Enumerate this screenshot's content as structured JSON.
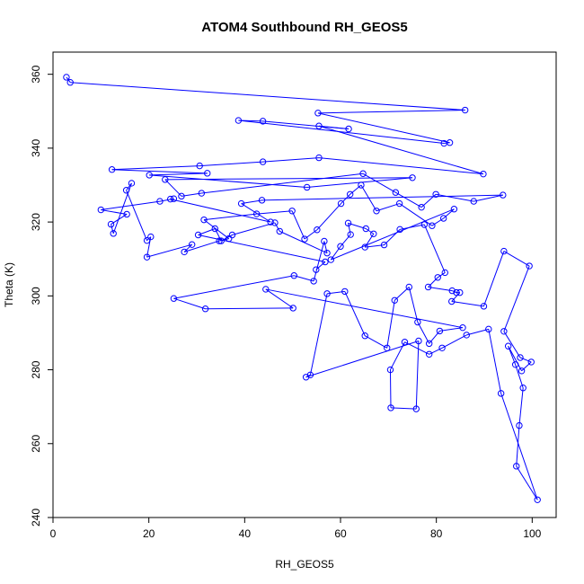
{
  "chart_data": {
    "type": "scatter",
    "mode": "points-and-lines",
    "title": "ATOM4 Southbound RH_GEOS5",
    "xlabel": "RH_GEOS5",
    "ylabel": "Theta (K)",
    "xlim": [
      0,
      105
    ],
    "ylim": [
      240,
      366
    ],
    "xticks": [
      0,
      20,
      40,
      60,
      80,
      100
    ],
    "yticks": [
      240,
      260,
      280,
      300,
      320,
      340,
      360
    ],
    "color": "#0000ff",
    "marker": "open-circle",
    "grid": false,
    "legend": "none",
    "points": [
      [
        2.8,
        359.2
      ],
      [
        3.6,
        357.8
      ],
      [
        86,
        350.3
      ],
      [
        55.3,
        349.5
      ],
      [
        82.8,
        341.5
      ],
      [
        81.6,
        341.3
      ],
      [
        38.7,
        347.5
      ],
      [
        43.8,
        347.3
      ],
      [
        61.7,
        345.2
      ],
      [
        55.5,
        346.0
      ],
      [
        89.8,
        333.0
      ],
      [
        55.5,
        337.4
      ],
      [
        43.8,
        336.3
      ],
      [
        30.6,
        335.2
      ],
      [
        12.3,
        334.2
      ],
      [
        32.2,
        333.2
      ],
      [
        20.1,
        332.7
      ],
      [
        53,
        329.4
      ],
      [
        75,
        332
      ],
      [
        23.4,
        331.5
      ],
      [
        26.8,
        327.0
      ],
      [
        31,
        327.8
      ],
      [
        64.7,
        333.1
      ],
      [
        71.5,
        328
      ],
      [
        76.9,
        324
      ],
      [
        79.9,
        327.5
      ],
      [
        87.8,
        325.6
      ],
      [
        93.9,
        327.3
      ],
      [
        43.6,
        325.9
      ],
      [
        39.3,
        325
      ],
      [
        45.4,
        320
      ],
      [
        24.5,
        326.2
      ],
      [
        25.2,
        326.3
      ],
      [
        22.3,
        325.6
      ],
      [
        10,
        323.3
      ],
      [
        15.4,
        322.1
      ],
      [
        12.1,
        319.4
      ],
      [
        12.6,
        316.9
      ],
      [
        16.4,
        330.5
      ],
      [
        15.3,
        328.6
      ],
      [
        19.6,
        315
      ],
      [
        20.4,
        316
      ],
      [
        19.6,
        310.5
      ],
      [
        29,
        313.9
      ],
      [
        27.4,
        311.9
      ],
      [
        34.7,
        314.9
      ],
      [
        36.7,
        315.5
      ],
      [
        31.5,
        320.6
      ],
      [
        42.5,
        322.2
      ],
      [
        49.9,
        323.0
      ],
      [
        52.5,
        315.4
      ],
      [
        55.1,
        317.9
      ],
      [
        60.1,
        325.0
      ],
      [
        62,
        327.5
      ],
      [
        64.3,
        330
      ],
      [
        67.5,
        323.0
      ],
      [
        72.3,
        325
      ],
      [
        79.1,
        319.0
      ],
      [
        81.5,
        321.0
      ],
      [
        83.7,
        323.5
      ],
      [
        58,
        309.8
      ],
      [
        60,
        313.4
      ],
      [
        62.1,
        316.6
      ],
      [
        61.6,
        319.7
      ],
      [
        65.3,
        318.2
      ],
      [
        66.9,
        316.8
      ],
      [
        65.1,
        313.2
      ],
      [
        69.1,
        313.8
      ],
      [
        72.4,
        318
      ],
      [
        77.5,
        319.3
      ],
      [
        81.8,
        306.3
      ],
      [
        80.3,
        305.0
      ],
      [
        78.3,
        302.4
      ],
      [
        83.3,
        301.4
      ],
      [
        84.2,
        300.9
      ],
      [
        84.9,
        300.9
      ],
      [
        83.2,
        298.5
      ],
      [
        89.9,
        297.2
      ],
      [
        94.1,
        312.1
      ],
      [
        99.4,
        308.1
      ],
      [
        94.1,
        290.4
      ],
      [
        97.5,
        283.3
      ],
      [
        99.8,
        282.1
      ],
      [
        97.8,
        279.7
      ],
      [
        95,
        286.4
      ],
      [
        96.5,
        281.4
      ],
      [
        98.1,
        275.1
      ],
      [
        97.3,
        264.9
      ],
      [
        96.7,
        253.9
      ],
      [
        101.1,
        244.8
      ],
      [
        93.5,
        273.6
      ],
      [
        90.9,
        291.0
      ],
      [
        86.3,
        289.4
      ],
      [
        81.2,
        285.9
      ],
      [
        78.5,
        284.2
      ],
      [
        73.4,
        287.5
      ],
      [
        70.4,
        280.0
      ],
      [
        70.5,
        269.7
      ],
      [
        75.8,
        269.4
      ],
      [
        76.3,
        287.8
      ],
      [
        52.8,
        278.0
      ],
      [
        53.7,
        278.6
      ],
      [
        57.2,
        300.6
      ],
      [
        60.9,
        301.2
      ],
      [
        65.1,
        289.2
      ],
      [
        69.7,
        285.9
      ],
      [
        71.3,
        298.8
      ],
      [
        74.3,
        302.4
      ],
      [
        76.1,
        292.9
      ],
      [
        78.5,
        287.1
      ],
      [
        80.7,
        290.5
      ],
      [
        85.5,
        291.4
      ],
      [
        44.4,
        301.8
      ],
      [
        50.1,
        296.7
      ],
      [
        31.8,
        296.5
      ],
      [
        25.2,
        299.3
      ],
      [
        50.3,
        305.5
      ],
      [
        54.4,
        304.0
      ],
      [
        56.6,
        314.8
      ],
      [
        57.2,
        311.6
      ],
      [
        47.3,
        317.5
      ],
      [
        46.3,
        319.8
      ],
      [
        37.4,
        316.5
      ],
      [
        35.1,
        314.9
      ],
      [
        33.8,
        318.2
      ],
      [
        30.3,
        316.5
      ],
      [
        56.8,
        309.2
      ],
      [
        54.9,
        307.1
      ]
    ]
  }
}
